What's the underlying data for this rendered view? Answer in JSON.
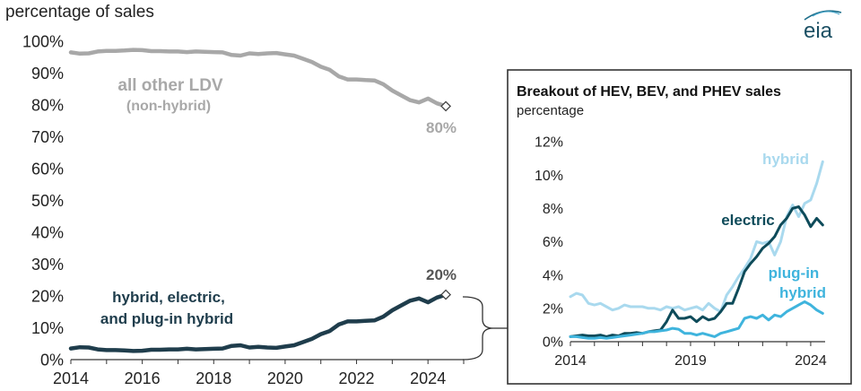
{
  "logo": {
    "text": "eia"
  },
  "colors": {
    "other": "#a8a8a8",
    "combined": "#1f3d4c",
    "hybrid": "#a9d9ee",
    "electric": "#0e4b5a",
    "phev": "#3fb4dd",
    "axis": "#333333",
    "grid": "#dddddd"
  },
  "chart_data": [
    {
      "type": "line",
      "ylabel": "percentage of sales",
      "xlim": [
        2014,
        2025
      ],
      "ylim": [
        0,
        100
      ],
      "x_ticks": [
        "2014",
        "2016",
        "2018",
        "2020",
        "2022",
        "2024"
      ],
      "y_ticks": [
        "0%",
        "10%",
        "20%",
        "30%",
        "40%",
        "50%",
        "60%",
        "70%",
        "80%",
        "90%",
        "100%"
      ],
      "grid": false,
      "series": [
        {
          "key": "other",
          "label": "all other LDV",
          "sublabel": "(non-hybrid)",
          "end_label": "80%",
          "x": [
            2014.0,
            2014.25,
            2014.5,
            2014.75,
            2015.0,
            2015.25,
            2015.5,
            2015.75,
            2016.0,
            2016.25,
            2016.5,
            2016.75,
            2017.0,
            2017.25,
            2017.5,
            2017.75,
            2018.0,
            2018.25,
            2018.5,
            2018.75,
            2019.0,
            2019.25,
            2019.5,
            2019.75,
            2020.0,
            2020.25,
            2020.5,
            2020.75,
            2021.0,
            2021.25,
            2021.5,
            2021.75,
            2022.0,
            2022.25,
            2022.5,
            2022.75,
            2023.0,
            2023.25,
            2023.5,
            2023.75,
            2024.0,
            2024.25,
            2024.5
          ],
          "y": [
            96.5,
            96.1,
            96.2,
            96.8,
            97.0,
            97.0,
            97.1,
            97.3,
            97.2,
            96.9,
            96.9,
            96.8,
            96.8,
            96.6,
            96.8,
            96.7,
            96.6,
            96.5,
            95.7,
            95.5,
            96.2,
            96.0,
            96.2,
            96.3,
            95.9,
            95.5,
            94.5,
            93.5,
            92.0,
            91.0,
            89.0,
            88.0,
            88.0,
            87.8,
            87.7,
            86.5,
            84.5,
            83.0,
            81.5,
            80.8,
            82.0,
            80.5,
            79.6
          ]
        },
        {
          "key": "combined",
          "label": "hybrid, electric,",
          "sublabel": "and plug-in hybrid",
          "end_label": "20%",
          "x": [
            2014.0,
            2014.25,
            2014.5,
            2014.75,
            2015.0,
            2015.25,
            2015.5,
            2015.75,
            2016.0,
            2016.25,
            2016.5,
            2016.75,
            2017.0,
            2017.25,
            2017.5,
            2017.75,
            2018.0,
            2018.25,
            2018.5,
            2018.75,
            2019.0,
            2019.25,
            2019.5,
            2019.75,
            2020.0,
            2020.25,
            2020.5,
            2020.75,
            2021.0,
            2021.25,
            2021.5,
            2021.75,
            2022.0,
            2022.25,
            2022.5,
            2022.75,
            2023.0,
            2023.25,
            2023.5,
            2023.75,
            2024.0,
            2024.25,
            2024.5
          ],
          "y": [
            3.5,
            3.9,
            3.8,
            3.2,
            3.0,
            3.0,
            2.9,
            2.7,
            2.8,
            3.1,
            3.1,
            3.2,
            3.2,
            3.4,
            3.2,
            3.3,
            3.4,
            3.5,
            4.3,
            4.5,
            3.8,
            4.0,
            3.8,
            3.7,
            4.1,
            4.5,
            5.5,
            6.5,
            8.0,
            9.0,
            11.0,
            12.0,
            12.0,
            12.2,
            12.3,
            13.5,
            15.5,
            17.0,
            18.5,
            19.2,
            18.0,
            19.5,
            20.4
          ]
        }
      ]
    },
    {
      "type": "line",
      "title": "Breakout of HEV,  BEV, and PHEV sales",
      "subtitle": "percentage",
      "xlim": [
        2014,
        2024.6
      ],
      "ylim": [
        0,
        12
      ],
      "x_ticks": [
        "2014",
        "2019",
        "2024"
      ],
      "y_ticks": [
        "0%",
        "2%",
        "4%",
        "6%",
        "8%",
        "10%",
        "12%"
      ],
      "grid": false,
      "series": [
        {
          "key": "hybrid",
          "label": "hybrid",
          "x": [
            2014.0,
            2014.25,
            2014.5,
            2014.75,
            2015.0,
            2015.25,
            2015.5,
            2015.75,
            2016.0,
            2016.25,
            2016.5,
            2016.75,
            2017.0,
            2017.25,
            2017.5,
            2017.75,
            2018.0,
            2018.25,
            2018.5,
            2018.75,
            2019.0,
            2019.25,
            2019.5,
            2019.75,
            2020.0,
            2020.25,
            2020.5,
            2020.75,
            2021.0,
            2021.25,
            2021.5,
            2021.75,
            2022.0,
            2022.25,
            2022.5,
            2022.75,
            2023.0,
            2023.25,
            2023.5,
            2023.75,
            2024.0,
            2024.25,
            2024.5
          ],
          "y": [
            2.7,
            2.9,
            2.8,
            2.3,
            2.2,
            2.3,
            2.1,
            1.9,
            2.0,
            2.2,
            2.1,
            2.1,
            2.1,
            2.0,
            2.0,
            1.9,
            2.1,
            2.0,
            2.1,
            1.9,
            2.0,
            2.1,
            1.9,
            2.3,
            2.0,
            1.8,
            2.8,
            3.3,
            3.9,
            4.4,
            5.0,
            6.0,
            5.9,
            6.0,
            5.2,
            6.0,
            7.5,
            8.2,
            7.5,
            8.3,
            8.5,
            9.5,
            10.8
          ]
        },
        {
          "key": "electric",
          "label": "electric",
          "x": [
            2014.0,
            2014.25,
            2014.5,
            2014.75,
            2015.0,
            2015.25,
            2015.5,
            2015.75,
            2016.0,
            2016.25,
            2016.5,
            2016.75,
            2017.0,
            2017.25,
            2017.5,
            2017.75,
            2018.0,
            2018.25,
            2018.5,
            2018.75,
            2019.0,
            2019.25,
            2019.5,
            2019.75,
            2020.0,
            2020.25,
            2020.5,
            2020.75,
            2021.0,
            2021.25,
            2021.5,
            2021.75,
            2022.0,
            2022.25,
            2022.5,
            2022.75,
            2023.0,
            2023.25,
            2023.5,
            2023.75,
            2024.0,
            2024.25,
            2024.5
          ],
          "y": [
            0.3,
            0.35,
            0.4,
            0.35,
            0.35,
            0.4,
            0.3,
            0.4,
            0.35,
            0.5,
            0.5,
            0.55,
            0.5,
            0.6,
            0.65,
            0.7,
            1.2,
            1.9,
            1.4,
            1.4,
            1.5,
            1.2,
            1.5,
            1.3,
            1.4,
            1.8,
            2.3,
            2.3,
            3.2,
            4.2,
            4.7,
            5.1,
            5.6,
            5.9,
            6.3,
            7.0,
            7.4,
            8.0,
            8.1,
            7.6,
            6.9,
            7.4,
            7.0
          ]
        },
        {
          "key": "phev",
          "label": "plug-in",
          "sublabel": "hybrid",
          "x": [
            2014.0,
            2014.25,
            2014.5,
            2014.75,
            2015.0,
            2015.25,
            2015.5,
            2015.75,
            2016.0,
            2016.25,
            2016.5,
            2016.75,
            2017.0,
            2017.25,
            2017.5,
            2017.75,
            2018.0,
            2018.25,
            2018.5,
            2018.75,
            2019.0,
            2019.25,
            2019.5,
            2019.75,
            2020.0,
            2020.25,
            2020.5,
            2020.75,
            2021.0,
            2021.25,
            2021.5,
            2021.75,
            2022.0,
            2022.25,
            2022.5,
            2022.75,
            2023.0,
            2023.25,
            2023.5,
            2023.75,
            2024.0,
            2024.25,
            2024.5
          ],
          "y": [
            0.3,
            0.3,
            0.25,
            0.2,
            0.2,
            0.25,
            0.2,
            0.25,
            0.3,
            0.35,
            0.4,
            0.45,
            0.5,
            0.6,
            0.6,
            0.65,
            0.7,
            0.8,
            0.75,
            0.5,
            0.5,
            0.4,
            0.5,
            0.4,
            0.3,
            0.5,
            0.6,
            0.7,
            0.8,
            1.4,
            1.5,
            1.4,
            1.6,
            1.3,
            1.6,
            1.5,
            1.8,
            2.0,
            2.2,
            2.4,
            2.2,
            1.9,
            1.7
          ]
        }
      ]
    }
  ]
}
